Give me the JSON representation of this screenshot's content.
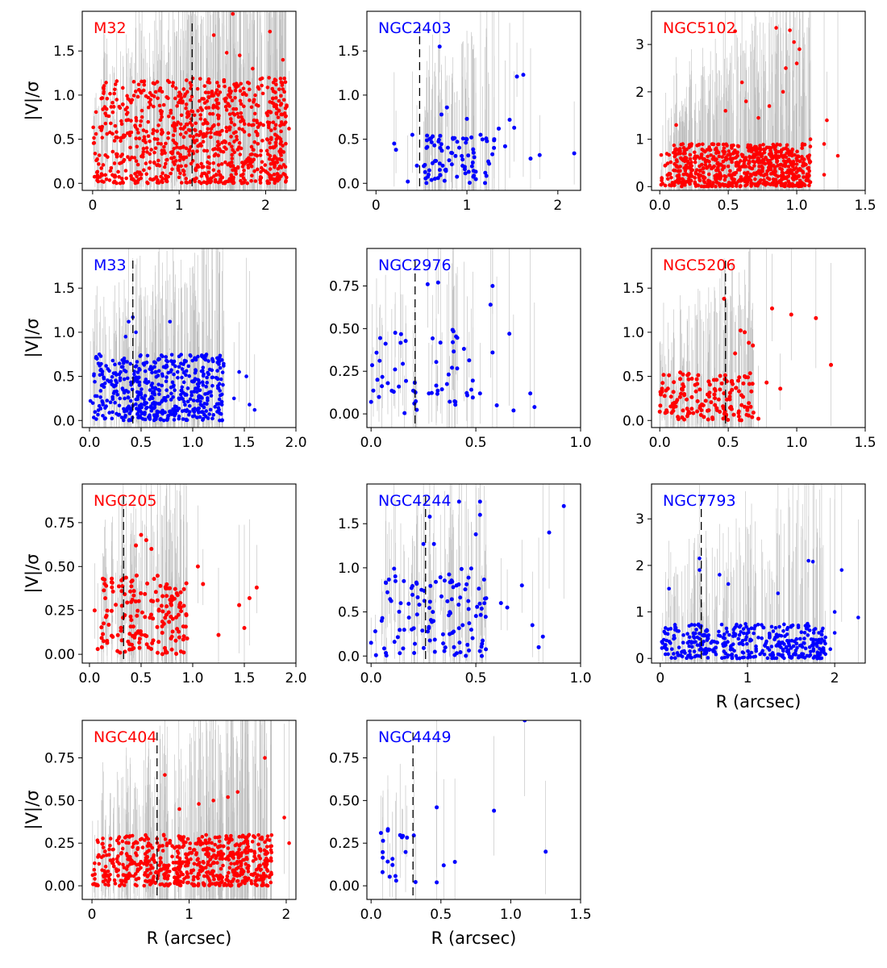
{
  "figure": {
    "ylabel": "|V|/σ",
    "xlabel": "R (arcsec)",
    "colors": {
      "red": "#ff0000",
      "blue": "#0000ff",
      "errorbar": "#bdbdbd"
    }
  },
  "chart_data": [
    {
      "type": "scatter",
      "title": "M32",
      "color": "#ff0000",
      "seed": 1,
      "n": 900,
      "dist": "dense",
      "xmin": 0.0,
      "xmax": 2.25,
      "ymin": 0.0,
      "ymax": 1.2,
      "xlim": [
        -0.12,
        2.35
      ],
      "ylim": [
        -0.08,
        1.95
      ],
      "xticks": [
        0,
        1,
        2
      ],
      "yticks": [
        0.0,
        0.5,
        1.0,
        1.5
      ],
      "vline": 1.15,
      "xlabel": "",
      "ylabel": "|V|/σ",
      "points": [
        [
          1.62,
          1.92
        ],
        [
          2.05,
          1.72
        ],
        [
          1.4,
          1.68
        ],
        [
          1.55,
          1.48
        ],
        [
          1.7,
          1.45
        ],
        [
          1.85,
          1.3
        ],
        [
          2.2,
          1.4
        ],
        [
          2.12,
          1.12
        ],
        [
          2.27,
          0.62
        ],
        [
          2.18,
          0.78
        ]
      ]
    },
    {
      "type": "scatter",
      "title": "NGC2403",
      "color": "#0000ff",
      "seed": 2,
      "n": 85,
      "dist": "sparse",
      "xmin": 0.5,
      "xmax": 1.3,
      "ymin": 0.0,
      "ymax": 0.55,
      "xlim": [
        -0.1,
        2.25
      ],
      "ylim": [
        -0.08,
        1.95
      ],
      "xticks": [
        0,
        1,
        2
      ],
      "yticks": [
        0.0,
        0.5,
        1.0,
        1.5
      ],
      "vline": 0.48,
      "xlabel": "",
      "ylabel": "",
      "points": [
        [
          0.7,
          1.55
        ],
        [
          1.62,
          1.23
        ],
        [
          1.55,
          1.21
        ],
        [
          0.78,
          0.86
        ],
        [
          0.72,
          0.78
        ],
        [
          1.0,
          0.73
        ],
        [
          1.47,
          0.72
        ],
        [
          1.52,
          0.63
        ],
        [
          1.35,
          0.62
        ],
        [
          2.18,
          0.34
        ],
        [
          1.8,
          0.32
        ],
        [
          1.7,
          0.28
        ],
        [
          0.2,
          0.45
        ],
        [
          0.22,
          0.38
        ],
        [
          0.35,
          0.02
        ],
        [
          1.42,
          0.42
        ],
        [
          1.3,
          0.5
        ],
        [
          1.15,
          0.55
        ],
        [
          0.4,
          0.55
        ],
        [
          0.45,
          0.2
        ]
      ]
    },
    {
      "type": "scatter",
      "title": "NGC5102",
      "color": "#ff0000",
      "seed": 3,
      "n": 700,
      "dist": "dense",
      "xmin": 0.0,
      "xmax": 1.1,
      "ymin": 0.0,
      "ymax": 0.9,
      "xlim": [
        -0.06,
        1.5
      ],
      "ylim": [
        -0.08,
        3.7
      ],
      "xticks": [
        0.0,
        0.5,
        1.0,
        1.5
      ],
      "yticks": [
        0,
        1,
        2,
        3
      ],
      "vline": null,
      "xlabel": "",
      "ylabel": "",
      "points": [
        [
          0.85,
          3.35
        ],
        [
          0.95,
          3.3
        ],
        [
          0.55,
          3.28
        ],
        [
          0.98,
          3.05
        ],
        [
          1.02,
          2.9
        ],
        [
          1.0,
          2.6
        ],
        [
          0.92,
          2.5
        ],
        [
          0.6,
          2.2
        ],
        [
          0.9,
          2.0
        ],
        [
          0.63,
          1.8
        ],
        [
          0.12,
          1.3
        ],
        [
          0.72,
          1.45
        ],
        [
          1.22,
          1.4
        ],
        [
          1.1,
          1.0
        ],
        [
          1.2,
          0.9
        ],
        [
          1.3,
          0.65
        ],
        [
          1.2,
          0.25
        ],
        [
          1.05,
          0.2
        ],
        [
          0.8,
          1.7
        ],
        [
          0.48,
          1.6
        ]
      ]
    },
    {
      "type": "scatter",
      "title": "M33",
      "color": "#0000ff",
      "seed": 4,
      "n": 520,
      "dist": "dense",
      "xmin": 0.0,
      "xmax": 1.3,
      "ymin": 0.0,
      "ymax": 0.75,
      "xlim": [
        -0.07,
        2.0
      ],
      "ylim": [
        -0.08,
        1.95
      ],
      "xticks": [
        0.0,
        0.5,
        1.0,
        1.5,
        2.0
      ],
      "yticks": [
        0.0,
        0.5,
        1.0,
        1.5
      ],
      "vline": 0.42,
      "xlabel": "",
      "ylabel": "|V|/σ",
      "points": [
        [
          0.42,
          1.17
        ],
        [
          0.38,
          1.12
        ],
        [
          0.78,
          1.12
        ],
        [
          0.45,
          1.0
        ],
        [
          0.35,
          0.95
        ],
        [
          1.1,
          0.6
        ],
        [
          1.3,
          0.62
        ],
        [
          1.45,
          0.55
        ],
        [
          1.52,
          0.5
        ],
        [
          1.6,
          0.12
        ],
        [
          1.55,
          0.18
        ],
        [
          1.4,
          0.25
        ]
      ]
    },
    {
      "type": "scatter",
      "title": "NGC2976",
      "color": "#0000ff",
      "seed": 5,
      "n": 55,
      "dist": "sparse",
      "xmin": 0.0,
      "xmax": 0.5,
      "ymin": 0.0,
      "ymax": 0.5,
      "xlim": [
        -0.02,
        1.0
      ],
      "ylim": [
        -0.08,
        0.97
      ],
      "xticks": [
        0.0,
        0.5,
        1.0
      ],
      "yticks": [
        0.0,
        0.25,
        0.5,
        0.75
      ],
      "vline": 0.21,
      "xlabel": "",
      "ylabel": "",
      "points": [
        [
          0.32,
          0.77
        ],
        [
          0.58,
          0.75
        ],
        [
          0.27,
          0.76
        ],
        [
          0.57,
          0.64
        ],
        [
          0.66,
          0.47
        ],
        [
          0.39,
          0.42
        ],
        [
          0.58,
          0.36
        ],
        [
          0.68,
          0.02
        ],
        [
          0.76,
          0.12
        ],
        [
          0.78,
          0.04
        ],
        [
          0.6,
          0.05
        ],
        [
          0.52,
          0.12
        ],
        [
          0.0,
          0.07
        ],
        [
          0.03,
          0.2
        ],
        [
          0.08,
          0.18
        ]
      ]
    },
    {
      "type": "scatter",
      "title": "NGC5206",
      "color": "#ff0000",
      "seed": 6,
      "n": 150,
      "dist": "sparse",
      "xmin": 0.0,
      "xmax": 0.7,
      "ymin": 0.0,
      "ymax": 0.55,
      "xlim": [
        -0.06,
        1.5
      ],
      "ylim": [
        -0.08,
        1.95
      ],
      "xticks": [
        0.0,
        0.5,
        1.0,
        1.5
      ],
      "yticks": [
        0.0,
        0.5,
        1.0,
        1.5
      ],
      "vline": 0.48,
      "xlabel": "",
      "ylabel": "",
      "points": [
        [
          0.47,
          1.38
        ],
        [
          0.82,
          1.27
        ],
        [
          0.96,
          1.2
        ],
        [
          1.14,
          1.16
        ],
        [
          0.59,
          1.02
        ],
        [
          0.62,
          1.0
        ],
        [
          0.68,
          0.85
        ],
        [
          1.25,
          0.63
        ],
        [
          0.78,
          0.43
        ],
        [
          0.88,
          0.36
        ],
        [
          0.0,
          0.1
        ],
        [
          0.72,
          0.02
        ],
        [
          0.65,
          0.88
        ],
        [
          0.55,
          0.76
        ]
      ]
    },
    {
      "type": "scatter",
      "title": "NGC205",
      "color": "#ff0000",
      "seed": 7,
      "n": 170,
      "dist": "sparse",
      "xmin": 0.1,
      "xmax": 0.95,
      "ymin": 0.0,
      "ymax": 0.45,
      "xlim": [
        -0.07,
        2.0
      ],
      "ylim": [
        -0.05,
        0.97
      ],
      "xticks": [
        0.0,
        0.5,
        1.0,
        1.5,
        2.0
      ],
      "yticks": [
        0.0,
        0.25,
        0.5,
        0.75
      ],
      "vline": 0.33,
      "xlabel": "",
      "ylabel": "|V|/σ",
      "points": [
        [
          0.5,
          0.68
        ],
        [
          0.55,
          0.65
        ],
        [
          0.45,
          0.62
        ],
        [
          0.6,
          0.6
        ],
        [
          1.62,
          0.38
        ],
        [
          1.55,
          0.32
        ],
        [
          1.5,
          0.15
        ],
        [
          1.45,
          0.28
        ],
        [
          1.25,
          0.11
        ],
        [
          1.1,
          0.4
        ],
        [
          1.05,
          0.5
        ],
        [
          0.05,
          0.25
        ],
        [
          0.08,
          0.03
        ],
        [
          0.12,
          0.04
        ]
      ]
    },
    {
      "type": "scatter",
      "title": "NGC4244",
      "color": "#0000ff",
      "seed": 8,
      "n": 120,
      "dist": "sparse",
      "xmin": 0.02,
      "xmax": 0.55,
      "ymin": 0.0,
      "ymax": 1.0,
      "xlim": [
        -0.02,
        1.0
      ],
      "ylim": [
        -0.08,
        1.95
      ],
      "xticks": [
        0.0,
        0.5,
        1.0
      ],
      "yticks": [
        0.0,
        0.5,
        1.0,
        1.5
      ],
      "vline": 0.26,
      "xlabel": "",
      "ylabel": "",
      "points": [
        [
          0.92,
          1.7
        ],
        [
          0.42,
          1.75
        ],
        [
          0.52,
          1.75
        ],
        [
          0.28,
          1.58
        ],
        [
          0.52,
          1.6
        ],
        [
          0.5,
          1.38
        ],
        [
          0.85,
          1.4
        ],
        [
          0.3,
          1.27
        ],
        [
          0.25,
          1.27
        ],
        [
          0.72,
          0.8
        ],
        [
          0.65,
          0.55
        ],
        [
          0.77,
          0.35
        ],
        [
          0.82,
          0.22
        ],
        [
          0.8,
          0.1
        ],
        [
          0.62,
          0.6
        ],
        [
          0.0,
          0.15
        ]
      ]
    },
    {
      "type": "scatter",
      "title": "NGC7793",
      "color": "#0000ff",
      "seed": 9,
      "n": 380,
      "dist": "dense",
      "xmin": 0.0,
      "xmax": 1.9,
      "ymin": 0.0,
      "ymax": 0.75,
      "xlim": [
        -0.1,
        2.35
      ],
      "ylim": [
        -0.1,
        3.75
      ],
      "xticks": [
        0,
        1,
        2
      ],
      "yticks": [
        0,
        1,
        2,
        3
      ],
      "vline": 0.47,
      "xlabel": "R (arcsec)",
      "ylabel": "",
      "points": [
        [
          0.45,
          2.15
        ],
        [
          0.45,
          1.9
        ],
        [
          0.1,
          1.5
        ],
        [
          0.68,
          1.8
        ],
        [
          1.7,
          2.1
        ],
        [
          1.75,
          2.08
        ],
        [
          2.08,
          1.9
        ],
        [
          0.78,
          1.6
        ],
        [
          1.35,
          1.4
        ],
        [
          2.27,
          0.88
        ],
        [
          2.0,
          1.0
        ],
        [
          1.95,
          0.2
        ],
        [
          2.0,
          0.55
        ],
        [
          1.85,
          0.18
        ]
      ]
    },
    {
      "type": "scatter",
      "title": "NGC404",
      "color": "#ff0000",
      "seed": 10,
      "n": 700,
      "dist": "dense",
      "xmin": 0.0,
      "xmax": 1.85,
      "ymin": 0.0,
      "ymax": 0.3,
      "xlim": [
        -0.1,
        2.1
      ],
      "ylim": [
        -0.08,
        0.97
      ],
      "xticks": [
        0,
        1,
        2
      ],
      "yticks": [
        0.0,
        0.25,
        0.5,
        0.75
      ],
      "vline": 0.67,
      "xlabel": "R (arcsec)",
      "ylabel": "|V|/σ",
      "points": [
        [
          1.78,
          0.75
        ],
        [
          0.75,
          0.65
        ],
        [
          1.98,
          0.4
        ],
        [
          2.03,
          0.25
        ],
        [
          1.5,
          0.55
        ],
        [
          1.4,
          0.52
        ],
        [
          1.25,
          0.5
        ],
        [
          1.1,
          0.48
        ],
        [
          0.9,
          0.45
        ]
      ]
    },
    {
      "type": "scatter",
      "title": "NGC4449",
      "color": "#0000ff",
      "seed": 11,
      "n": 20,
      "dist": "sparse",
      "xmin": 0.07,
      "xmax": 0.32,
      "ymin": 0.02,
      "ymax": 0.35,
      "xlim": [
        -0.03,
        1.5
      ],
      "ylim": [
        -0.08,
        0.97
      ],
      "xticks": [
        0.0,
        0.5,
        1.0,
        1.5
      ],
      "yticks": [
        0.0,
        0.25,
        0.5,
        0.75
      ],
      "vline": 0.3,
      "xlabel": "R (arcsec)",
      "ylabel": "",
      "points": [
        [
          1.1,
          0.97
        ],
        [
          0.88,
          0.44
        ],
        [
          1.25,
          0.2
        ],
        [
          0.47,
          0.46
        ],
        [
          0.6,
          0.14
        ],
        [
          0.52,
          0.12
        ],
        [
          0.47,
          0.02
        ]
      ]
    }
  ]
}
